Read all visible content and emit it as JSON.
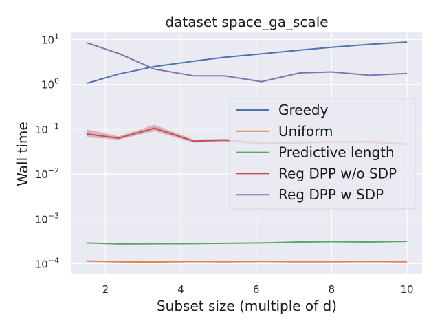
{
  "chart_data": {
    "type": "line",
    "title": "dataset space_ga_scale",
    "xlabel": "Subset size (multiple of d)",
    "ylabel": "Wall time",
    "yscale": "log",
    "xlim": [
      1.1,
      10.4
    ],
    "ylim": [
      6e-05,
      15
    ],
    "x_ticks": [
      2,
      4,
      6,
      8,
      10
    ],
    "y_ticks": [
      {
        "base": "10",
        "exp": "1",
        "value": 10
      },
      {
        "base": "10",
        "exp": "0",
        "value": 1
      },
      {
        "base": "10",
        "exp": "−1",
        "value": 0.1
      },
      {
        "base": "10",
        "exp": "−2",
        "value": 0.01
      },
      {
        "base": "10",
        "exp": "−3",
        "value": 0.001
      },
      {
        "base": "10",
        "exp": "−4",
        "value": 0.0001
      }
    ],
    "grid": true,
    "legend_position": "center-right",
    "background": "#eaeaf2",
    "series": [
      {
        "name": "Greedy",
        "color": "#4c72b0",
        "x": [
          1.5,
          2.35,
          3.3,
          4.35,
          5.15,
          6.15,
          7.15,
          8.0,
          9.0,
          10.0
        ],
        "values": [
          1.05,
          1.7,
          2.5,
          3.3,
          4.0,
          4.8,
          5.8,
          6.7,
          7.8,
          8.8
        ]
      },
      {
        "name": "Uniform",
        "color": "#dd8452",
        "x": [
          1.5,
          2.35,
          3.3,
          4.35,
          5.15,
          6.15,
          7.15,
          8.0,
          9.0,
          10.0
        ],
        "values": [
          0.000115,
          0.00011,
          0.000109,
          0.000112,
          0.00011,
          0.000113,
          0.00011,
          0.000111,
          0.000112,
          0.00011
        ],
        "band_lower": [
          0.00011,
          0.000108,
          0.000107,
          0.00011,
          0.000108,
          0.000111,
          0.000108,
          0.000109,
          0.00011,
          0.000108
        ],
        "band_upper": [
          0.00012,
          0.000112,
          0.000111,
          0.000114,
          0.000112,
          0.000115,
          0.000112,
          0.000113,
          0.000114,
          0.000112
        ]
      },
      {
        "name": "Predictive length",
        "color": "#55a868",
        "x": [
          1.5,
          2.35,
          3.3,
          4.35,
          5.15,
          6.15,
          7.15,
          8.0,
          9.0,
          10.0
        ],
        "values": [
          0.00029,
          0.000275,
          0.000278,
          0.00028,
          0.000285,
          0.00029,
          0.000305,
          0.00031,
          0.000305,
          0.000315
        ]
      },
      {
        "name": "Reg DPP w/o SDP",
        "color": "#c44e52",
        "x": [
          1.5,
          2.35,
          3.3,
          4.35,
          5.15,
          6.15,
          7.15,
          8.0,
          9.0,
          10.0
        ],
        "values": [
          0.078,
          0.063,
          0.105,
          0.054,
          0.057,
          0.048,
          0.05,
          0.052,
          0.052,
          0.046
        ],
        "band_lower": [
          0.066,
          0.058,
          0.09,
          0.05,
          0.053,
          0.045,
          0.047,
          0.049,
          0.049,
          0.044
        ],
        "band_upper": [
          0.1,
          0.069,
          0.125,
          0.058,
          0.061,
          0.051,
          0.053,
          0.055,
          0.056,
          0.048
        ]
      },
      {
        "name": "Reg DPP w SDP",
        "color": "#8172b3",
        "x": [
          1.5,
          2.35,
          3.3,
          4.35,
          5.15,
          6.15,
          7.15,
          8.0,
          9.0,
          10.0
        ],
        "values": [
          8.5,
          4.9,
          2.2,
          1.55,
          1.55,
          1.15,
          1.8,
          1.9,
          1.6,
          1.75
        ]
      }
    ]
  }
}
